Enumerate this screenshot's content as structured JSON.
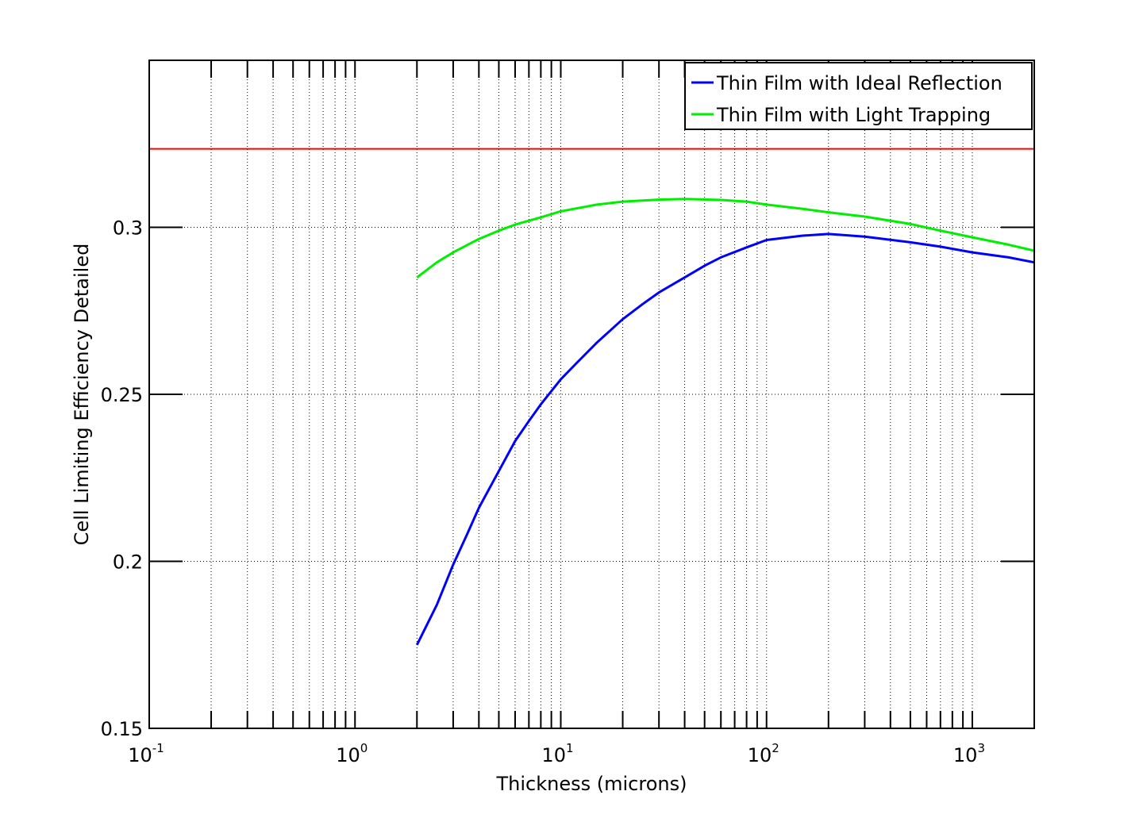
{
  "chart_data": {
    "type": "line",
    "title": "",
    "xlabel": "Thickness (microns)",
    "ylabel": "Cell Limiting Efficiency Detailed",
    "xscale": "log",
    "xlim": [
      0.1,
      2000
    ],
    "ylim": [
      0.15,
      0.35
    ],
    "grid": true,
    "legend_position": "top-right",
    "x_ticks": [
      {
        "base": "10",
        "exp": "-1"
      },
      {
        "base": "10",
        "exp": "0"
      },
      {
        "base": "10",
        "exp": "1"
      },
      {
        "base": "10",
        "exp": "2"
      },
      {
        "base": "10",
        "exp": "3"
      }
    ],
    "x_tick_values": [
      0.1,
      1,
      10,
      100,
      1000
    ],
    "y_ticks": [
      "0.15",
      "0.2",
      "0.25",
      "0.3"
    ],
    "y_tick_values": [
      0.15,
      0.2,
      0.25,
      0.3
    ],
    "reference_line": {
      "y": 0.3235,
      "color": "#ff0000"
    },
    "series": [
      {
        "name": "Thin Film with Ideal Reflection",
        "color": "#0000ff",
        "x": [
          2,
          2.5,
          3,
          3.5,
          4,
          5,
          6,
          7,
          8,
          10,
          12,
          15,
          20,
          25,
          30,
          40,
          50,
          60,
          80,
          100,
          150,
          200,
          300,
          500,
          700,
          1000,
          1500,
          2000
        ],
        "y": [
          0.175,
          0.187,
          0.199,
          0.208,
          0.216,
          0.227,
          0.236,
          0.242,
          0.247,
          0.2545,
          0.2595,
          0.2655,
          0.2725,
          0.277,
          0.2805,
          0.285,
          0.2885,
          0.291,
          0.294,
          0.2962,
          0.2975,
          0.298,
          0.2972,
          0.2955,
          0.2942,
          0.2925,
          0.291,
          0.2895
        ]
      },
      {
        "name": "Thin Film with Light Trapping",
        "color": "#00ee00",
        "x": [
          2,
          2.5,
          3,
          4,
          5,
          6,
          8,
          10,
          15,
          20,
          30,
          40,
          60,
          80,
          100,
          150,
          200,
          300,
          500,
          700,
          1000,
          1500,
          2000
        ],
        "y": [
          0.285,
          0.2895,
          0.2925,
          0.2965,
          0.299,
          0.3008,
          0.303,
          0.3048,
          0.3068,
          0.3077,
          0.3083,
          0.3085,
          0.3082,
          0.3077,
          0.3068,
          0.3055,
          0.3045,
          0.3032,
          0.301,
          0.299,
          0.297,
          0.2948,
          0.293
        ]
      }
    ]
  }
}
